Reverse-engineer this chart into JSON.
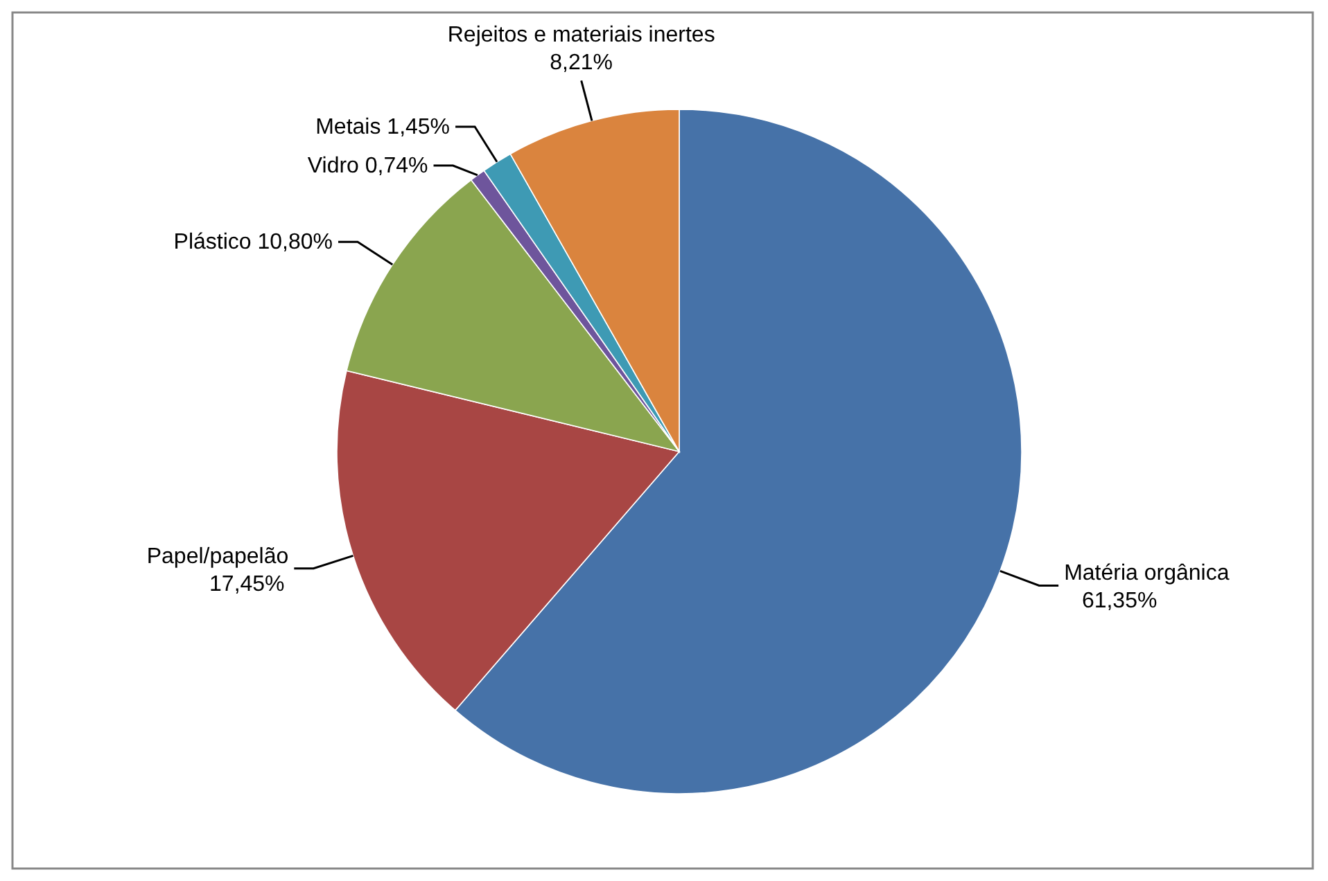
{
  "chart_data": {
    "type": "pie",
    "categories": [
      "Matéria orgânica",
      "Papel/papelão",
      "Plástico",
      "Vidro",
      "Metais",
      "Rejeitos e materiais inertes"
    ],
    "values": [
      61.35,
      17.45,
      10.8,
      0.74,
      1.45,
      8.21
    ],
    "colors": [
      "#4672a8",
      "#a84644",
      "#8aa54f",
      "#6e559c",
      "#3e9ab4",
      "#da843e"
    ],
    "value_labels": [
      "61,35%",
      "17,45%",
      "10,80%",
      "0,74%",
      "1,45%",
      "8,21%"
    ]
  }
}
